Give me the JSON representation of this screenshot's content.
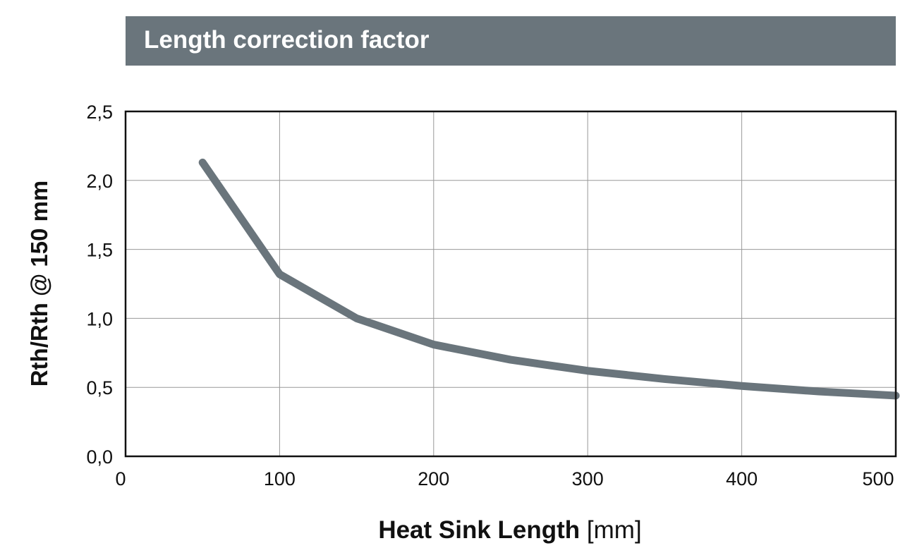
{
  "title": "Length correction factor",
  "chart_data": {
    "type": "line",
    "title": "Length correction factor",
    "xlabel": "Heat Sink Length",
    "xlabel_unit": "[mm]",
    "ylabel": "Rth/Rth @ 150 mm",
    "xlim": [
      0,
      500
    ],
    "ylim": [
      0,
      2.5
    ],
    "xticks": [
      "0",
      "100",
      "200",
      "300",
      "400",
      "500"
    ],
    "xtick_values": [
      0,
      100,
      200,
      300,
      400,
      500
    ],
    "yticks": [
      "0,0",
      "0,5",
      "1,0",
      "1,5",
      "2,0",
      "2,5"
    ],
    "ytick_values": [
      0,
      0.5,
      1.0,
      1.5,
      2.0,
      2.5
    ],
    "grid": true,
    "series": [
      {
        "name": "Length correction factor",
        "color": "#6a757c",
        "x": [
          50,
          100,
          150,
          200,
          250,
          300,
          350,
          400,
          450,
          500
        ],
        "y": [
          2.13,
          1.32,
          1.0,
          0.81,
          0.7,
          0.62,
          0.56,
          0.51,
          0.47,
          0.44
        ]
      }
    ]
  }
}
